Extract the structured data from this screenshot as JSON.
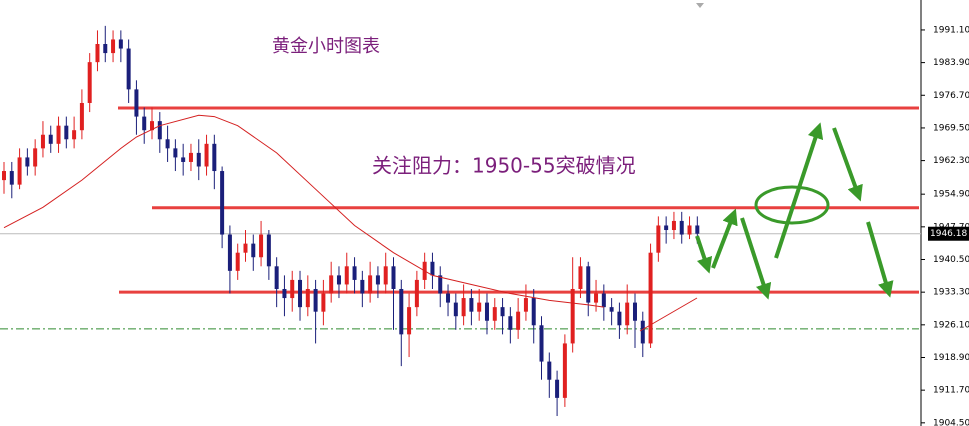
{
  "chart_data": {
    "type": "candlestick",
    "title": "黄金小时图表",
    "annotation": "关注阻力：1950-55突破情况",
    "ylim": [
      1903.8,
      1997.7
    ],
    "yticks": [
      {
        "value": 1991.1,
        "label": "1991.10"
      },
      {
        "value": 1983.9,
        "label": "1983.90"
      },
      {
        "value": 1976.7,
        "label": "1976.70"
      },
      {
        "value": 1969.5,
        "label": "1969.50"
      },
      {
        "value": 1962.3,
        "label": "1962.30"
      },
      {
        "value": 1954.9,
        "label": "1954.90"
      },
      {
        "value": 1947.7,
        "label": "1947.70"
      },
      {
        "value": 1940.5,
        "label": "1940.50"
      },
      {
        "value": 1933.3,
        "label": "1933.30"
      },
      {
        "value": 1926.1,
        "label": "1926.10"
      },
      {
        "value": 1918.9,
        "label": "1918.90"
      },
      {
        "value": 1911.7,
        "label": "1911.70"
      },
      {
        "value": 1904.5,
        "label": "1904.50"
      }
    ],
    "current_price": 1946.18,
    "up_color": "#e02020",
    "down_color": "#1a1f7a",
    "open": [
      1958,
      1960,
      1957,
      1963,
      1961,
      1965,
      1968,
      1966,
      1970,
      1967,
      1969,
      1975,
      1984,
      1988,
      1986,
      1989,
      1987,
      1978,
      1972,
      1969,
      1971,
      1967,
      1965,
      1963,
      1962,
      1964,
      1961,
      1966,
      1960,
      1946,
      1938,
      1942,
      1944,
      1941,
      1946,
      1939,
      1934,
      1932,
      1936,
      1930,
      1934,
      1929,
      1933,
      1937,
      1935,
      1939,
      1936,
      1933,
      1937,
      1935,
      1939,
      1934,
      1924,
      1930,
      1936,
      1940,
      1937,
      1933,
      1931,
      1928,
      1932,
      1929,
      1931,
      1927,
      1930,
      1928,
      1925,
      1929,
      1932,
      1926,
      1918,
      1914,
      1910,
      1922,
      1934,
      1939,
      1931,
      1933,
      1930,
      1929,
      1926,
      1931,
      1927,
      1922,
      1942,
      1948,
      1947,
      1949,
      1946,
      1948
    ],
    "high": [
      1962,
      1962,
      1965,
      1965,
      1967,
      1971,
      1970,
      1972,
      1972,
      1972,
      1978,
      1986,
      1991,
      1992,
      1991,
      1991,
      1989,
      1980,
      1974,
      1974,
      1973,
      1970,
      1967,
      1966,
      1966,
      1967,
      1968,
      1968,
      1961,
      1948,
      1944,
      1947,
      1946,
      1949,
      1947,
      1941,
      1937,
      1938,
      1938,
      1937,
      1936,
      1936,
      1940,
      1939,
      1942,
      1941,
      1938,
      1940,
      1939,
      1942,
      1941,
      1936,
      1933,
      1938,
      1942,
      1942,
      1939,
      1935,
      1933,
      1935,
      1934,
      1934,
      1933,
      1932,
      1932,
      1930,
      1932,
      1935,
      1934,
      1928,
      1920,
      1916,
      1924,
      1941,
      1941,
      1940,
      1936,
      1935,
      1932,
      1931,
      1935,
      1933,
      1929,
      1944,
      1950,
      1950,
      1951,
      1951,
      1950,
      1950
    ],
    "low": [
      1955,
      1954,
      1956,
      1959,
      1959,
      1963,
      1964,
      1964,
      1965,
      1965,
      1967,
      1973,
      1982,
      1984,
      1984,
      1984,
      1975,
      1968,
      1966,
      1967,
      1964,
      1962,
      1960,
      1959,
      1960,
      1958,
      1959,
      1956,
      1943,
      1933,
      1936,
      1940,
      1938,
      1939,
      1936,
      1930,
      1928,
      1929,
      1927,
      1928,
      1922,
      1926,
      1931,
      1932,
      1933,
      1933,
      1930,
      1931,
      1932,
      1933,
      1925,
      1917,
      1919,
      1928,
      1934,
      1934,
      1930,
      1928,
      1925,
      1926,
      1926,
      1927,
      1924,
      1925,
      1924,
      1922,
      1923,
      1927,
      1922,
      1914,
      1910,
      1906,
      1908,
      1920,
      1932,
      1928,
      1929,
      1927,
      1926,
      1923,
      1924,
      1921,
      1919,
      1921,
      1940,
      1944,
      1945,
      1944,
      1945,
      1944
    ],
    "close": [
      1960,
      1957,
      1963,
      1961,
      1965,
      1968,
      1966,
      1970,
      1967,
      1969,
      1975,
      1984,
      1988,
      1986,
      1989,
      1987,
      1978,
      1972,
      1969,
      1971,
      1967,
      1965,
      1963,
      1962,
      1964,
      1961,
      1966,
      1960,
      1946,
      1938,
      1942,
      1944,
      1941,
      1946,
      1939,
      1934,
      1932,
      1936,
      1930,
      1934,
      1929,
      1933,
      1937,
      1935,
      1939,
      1936,
      1933,
      1937,
      1935,
      1939,
      1934,
      1924,
      1930,
      1936,
      1940,
      1937,
      1933,
      1931,
      1928,
      1932,
      1929,
      1931,
      1927,
      1930,
      1928,
      1925,
      1929,
      1932,
      1926,
      1918,
      1914,
      1910,
      1922,
      1934,
      1939,
      1931,
      1933,
      1930,
      1929,
      1926,
      1931,
      1927,
      1922,
      1942,
      1948,
      1947,
      1949,
      1946,
      1948,
      1946.18
    ],
    "moving_average": {
      "color": "#d42020",
      "x": [
        0,
        5,
        10,
        15,
        17,
        20,
        25,
        27,
        30,
        35,
        40,
        45,
        50,
        55,
        60,
        65,
        70,
        75,
        77
      ],
      "values": [
        1947.5,
        1952,
        1958,
        1965,
        1967.5,
        1970,
        1972.3,
        1972,
        1970,
        1964,
        1956,
        1948,
        1942,
        1937,
        1935,
        1933,
        1931.5,
        1930.5,
        1930
      ]
    },
    "levels": [
      {
        "value": 1973.9,
        "color": "#e8403f",
        "style": "solid"
      },
      {
        "value": 1951.9,
        "color": "#e8403f",
        "style": "solid"
      },
      {
        "value": 1933.3,
        "color": "#e8403f",
        "style": "solid"
      },
      {
        "value": 1925.2,
        "color": "#2e8b2e",
        "style": "dashdot"
      }
    ]
  }
}
